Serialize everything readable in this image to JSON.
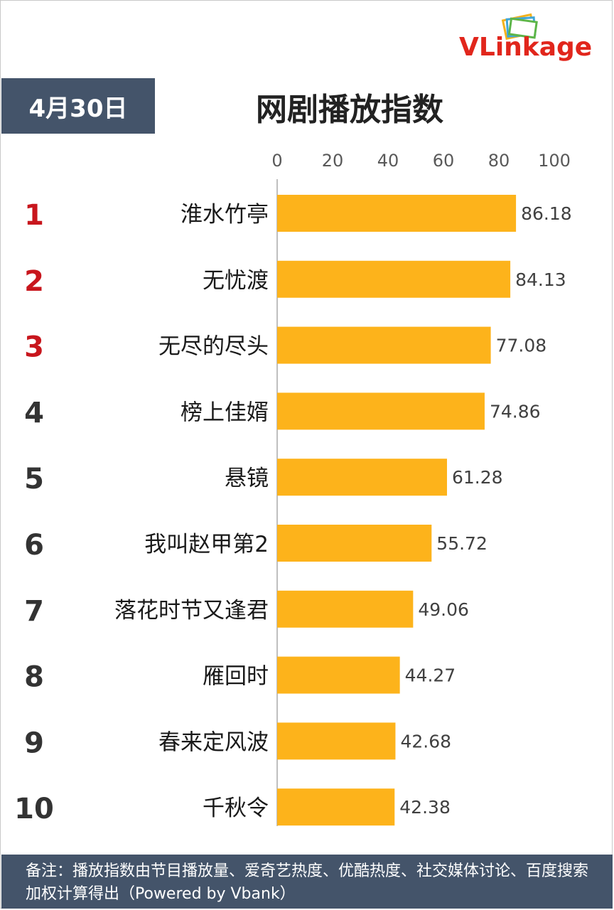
{
  "brand": {
    "logo_text_v": "V",
    "logo_text_link": "Link",
    "logo_text_age": "age",
    "logo_icon": "stacked-cards-icon",
    "accent": "#e1261c"
  },
  "header": {
    "date": "4月30日",
    "title": "网剧播放指数"
  },
  "chart_data": {
    "type": "bar",
    "orientation": "horizontal",
    "title": "网剧播放指数",
    "ranks": [
      "1",
      "2",
      "3",
      "4",
      "5",
      "6",
      "7",
      "8",
      "9",
      "10"
    ],
    "categories": [
      "淮水竹亭",
      "无忧渡",
      "无尽的尽头",
      "榜上佳婿",
      "悬镜",
      "我叫赵甲第2",
      "落花时节又逢君",
      "雁回时",
      "春来定风波",
      "千秋令"
    ],
    "values": [
      86.18,
      84.13,
      77.08,
      74.86,
      61.28,
      55.72,
      49.06,
      44.27,
      42.68,
      42.38
    ],
    "value_labels": [
      "86.18",
      "84.13",
      "77.08",
      "74.86",
      "61.28",
      "55.72",
      "49.06",
      "44.27",
      "42.68",
      "42.38"
    ],
    "xlim": [
      0,
      100
    ],
    "ticks": [
      "0",
      "20",
      "40",
      "60",
      "80",
      "100"
    ],
    "tick_values": [
      0,
      20,
      40,
      60,
      80,
      100
    ],
    "axis_position": "top",
    "grid": false,
    "bar_color": "#fdb31b",
    "rank_colors": [
      "#c8161d",
      "#c8161d",
      "#c8161d",
      "#333333",
      "#333333",
      "#333333",
      "#333333",
      "#333333",
      "#333333",
      "#333333"
    ]
  },
  "footer": {
    "note": "备注：播放指数由节目播放量、爱奇艺热度、优酷热度、社交媒体讨论、百度搜索加权计算得出（Powered by Vbank）"
  },
  "colors": {
    "header_bg": "#44546a",
    "footer_bg": "#44546a"
  }
}
